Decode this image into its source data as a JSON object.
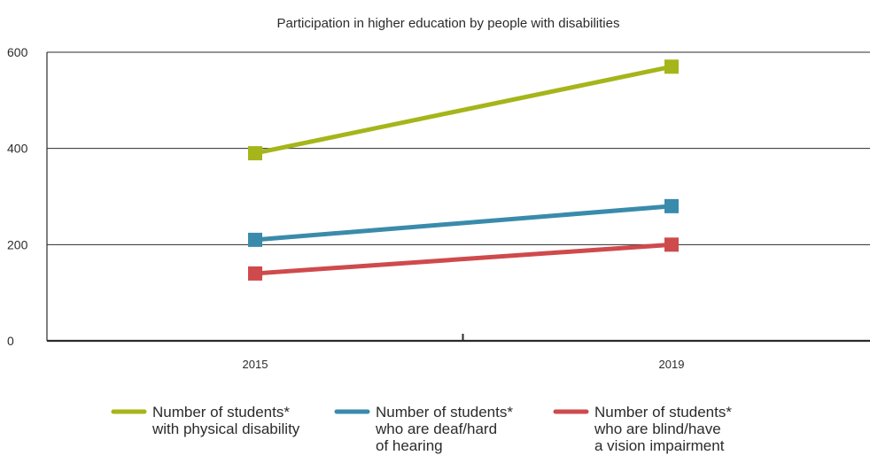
{
  "chart_data": {
    "type": "line",
    "title": "Participation in higher education by people with disabilities",
    "xlabel": "",
    "ylabel": "",
    "categories": [
      "2015",
      "2019"
    ],
    "ylim": [
      0,
      600
    ],
    "yticks": [
      "0",
      "200",
      "400",
      "600"
    ],
    "grid": "horizontal",
    "legend_placement": "bottom",
    "series": [
      {
        "name": "Number of students* with physical disability",
        "name_lines": [
          "Number of students*",
          "with physical disability"
        ],
        "values": [
          390,
          570
        ],
        "color": "#a5b51a"
      },
      {
        "name": "Number of students* who are deaf/hard of hearing",
        "name_lines": [
          "Number of students*",
          "who are deaf/hard",
          "of hearing"
        ],
        "values": [
          210,
          280
        ],
        "color": "#3a8bab"
      },
      {
        "name": "Number of students* who are blind/have a vision impairment",
        "name_lines": [
          "Number of students*",
          "who are blind/have",
          "a vision impairment"
        ],
        "values": [
          140,
          200
        ],
        "color": "#cf4a4c"
      }
    ]
  }
}
